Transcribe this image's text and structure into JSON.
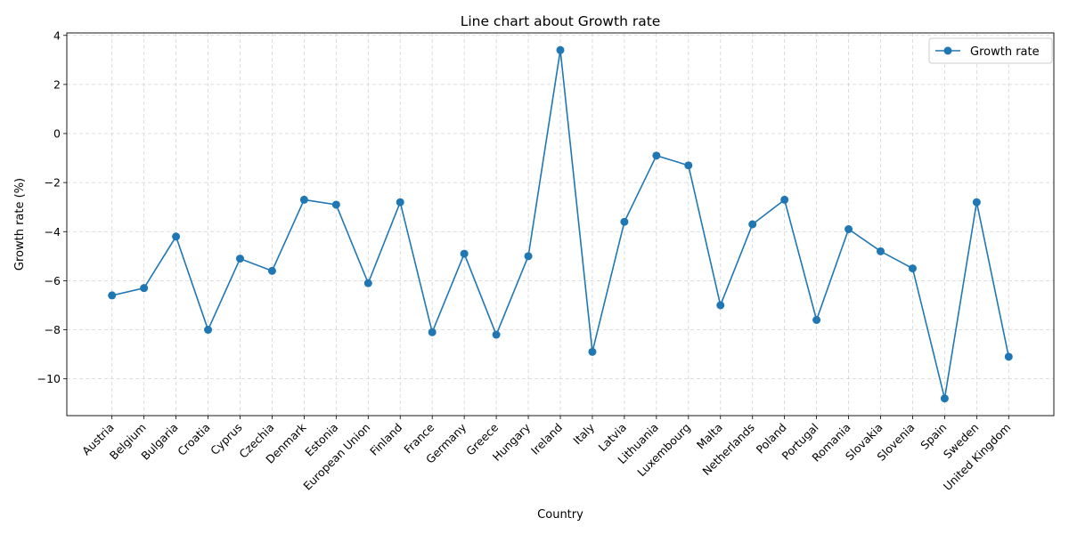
{
  "chart_data": {
    "type": "line",
    "title": "Line chart about Growth rate",
    "xlabel": "Country",
    "ylabel": "Growth rate (%)",
    "ylim": [
      -11.5,
      4.1
    ],
    "yticks": [
      4,
      2,
      0,
      -2,
      -4,
      -6,
      -8,
      -10
    ],
    "grid": true,
    "legend_position": "top-right",
    "color": "#1f77b4",
    "categories": [
      "Austria",
      "Belgium",
      "Bulgaria",
      "Croatia",
      "Cyprus",
      "Czechia",
      "Denmark",
      "Estonia",
      "European Union",
      "Finland",
      "France",
      "Germany",
      "Greece",
      "Hungary",
      "Ireland",
      "Italy",
      "Latvia",
      "Lithuania",
      "Luxembourg",
      "Malta",
      "Netherlands",
      "Poland",
      "Portugal",
      "Romania",
      "Slovakia",
      "Slovenia",
      "Spain",
      "Sweden",
      "United Kingdom"
    ],
    "series": [
      {
        "name": "Growth rate",
        "values": [
          -6.6,
          -6.3,
          -4.2,
          -8.0,
          -5.1,
          -5.6,
          -2.7,
          -2.9,
          -6.1,
          -2.8,
          -8.1,
          -4.9,
          -8.2,
          -5.0,
          3.4,
          -8.9,
          -3.6,
          -0.9,
          -1.3,
          -7.0,
          -3.7,
          -2.7,
          -7.6,
          -3.9,
          -4.8,
          -5.5,
          -10.8,
          -2.8,
          -9.1
        ]
      }
    ]
  }
}
